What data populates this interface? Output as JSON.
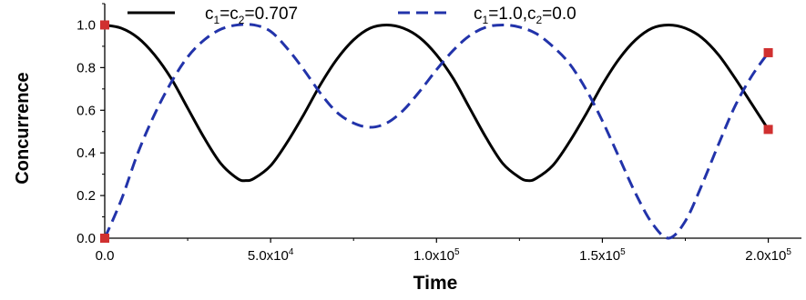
{
  "chart_data": {
    "type": "line",
    "xlabel": "Time",
    "ylabel": "Concurrence",
    "xlim": [
      0,
      210000
    ],
    "ylim": [
      0,
      1.1
    ],
    "x_ticks": [
      {
        "value": 0,
        "mantissa": "0.0",
        "exponent": ""
      },
      {
        "value": 50000,
        "mantissa": "5.0x10",
        "exponent": "4"
      },
      {
        "value": 100000,
        "mantissa": "1.0x10",
        "exponent": "5"
      },
      {
        "value": 150000,
        "mantissa": "1.5x10",
        "exponent": "5"
      },
      {
        "value": 200000,
        "mantissa": "2.0x10",
        "exponent": "5"
      }
    ],
    "y_ticks": [
      {
        "value": 0.0,
        "label": "0.0"
      },
      {
        "value": 0.2,
        "label": "0.2"
      },
      {
        "value": 0.4,
        "label": "0.4"
      },
      {
        "value": 0.6,
        "label": "0.6"
      },
      {
        "value": 0.8,
        "label": "0.8"
      },
      {
        "value": 1.0,
        "label": "1.0"
      }
    ],
    "grid": false,
    "legend_position": "top",
    "series": [
      {
        "name_parts": [
          "c",
          "1",
          "=c",
          "2",
          "=0.707"
        ],
        "color": "#000000",
        "style": "solid",
        "x": [
          0,
          5000,
          10000,
          15000,
          20000,
          25000,
          30000,
          35000,
          40000,
          42500,
          45000,
          50000,
          55000,
          60000,
          65000,
          70000,
          75000,
          80000,
          85000,
          90000,
          95000,
          100000,
          105000,
          110000,
          115000,
          120000,
          125000,
          127500,
          130000,
          135000,
          140000,
          145000,
          150000,
          155000,
          160000,
          165000,
          170000,
          175000,
          180000,
          185000,
          190000,
          195000,
          200000
        ],
        "y": [
          1.0,
          0.985,
          0.94,
          0.86,
          0.75,
          0.61,
          0.47,
          0.35,
          0.28,
          0.27,
          0.28,
          0.34,
          0.45,
          0.58,
          0.72,
          0.84,
          0.93,
          0.985,
          1.0,
          0.985,
          0.94,
          0.86,
          0.75,
          0.61,
          0.47,
          0.35,
          0.285,
          0.27,
          0.28,
          0.34,
          0.45,
          0.58,
          0.72,
          0.84,
          0.93,
          0.985,
          1.0,
          0.985,
          0.94,
          0.86,
          0.75,
          0.63,
          0.51
        ]
      },
      {
        "name_parts": [
          "c",
          "1",
          "=1.0,c",
          "2",
          "=0.0"
        ],
        "color": "#2233aa",
        "style": "dashed",
        "x": [
          0,
          5000,
          10000,
          15000,
          20000,
          25000,
          30000,
          35000,
          40000,
          45000,
          50000,
          55000,
          60000,
          65000,
          70000,
          75000,
          80000,
          85000,
          90000,
          95000,
          100000,
          105000,
          110000,
          115000,
          120000,
          125000,
          130000,
          135000,
          140000,
          145000,
          150000,
          155000,
          160000,
          165000,
          170000,
          175000,
          180000,
          185000,
          190000,
          195000,
          200000
        ],
        "y": [
          0.0,
          0.18,
          0.4,
          0.58,
          0.73,
          0.85,
          0.93,
          0.98,
          1.0,
          1.0,
          0.97,
          0.89,
          0.79,
          0.68,
          0.59,
          0.54,
          0.52,
          0.54,
          0.6,
          0.69,
          0.79,
          0.88,
          0.95,
          0.99,
          1.0,
          0.99,
          0.96,
          0.9,
          0.82,
          0.7,
          0.55,
          0.38,
          0.21,
          0.07,
          0.0,
          0.08,
          0.25,
          0.44,
          0.62,
          0.76,
          0.87
        ]
      }
    ],
    "markers": [
      {
        "x": 0,
        "y": 1.0,
        "color": "#d03030"
      },
      {
        "x": 0,
        "y": 0.0,
        "color": "#d03030"
      },
      {
        "x": 200000,
        "y": 0.87,
        "color": "#d03030"
      },
      {
        "x": 200000,
        "y": 0.51,
        "color": "#d03030"
      }
    ]
  }
}
